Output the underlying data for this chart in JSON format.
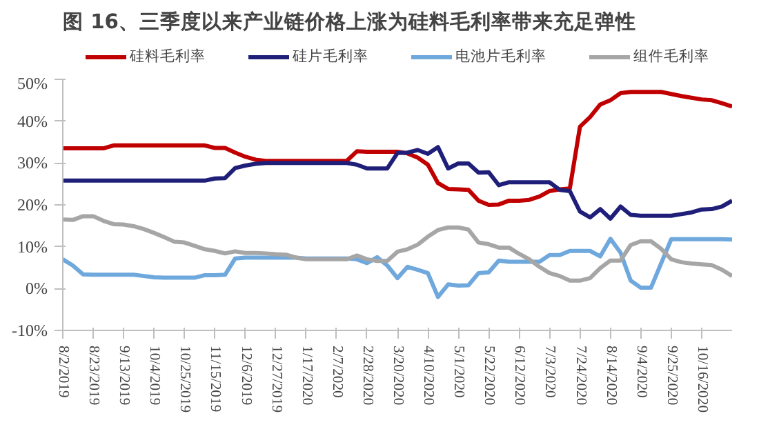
{
  "chart_data": {
    "type": "line",
    "title": "图 16、三季度以来产业链价格上涨为硅料毛利率带来充足弹性",
    "x": [
      "2019-08-02",
      "2019-08-09",
      "2019-08-16",
      "2019-08-23",
      "2019-08-30",
      "2019-09-06",
      "2019-09-13",
      "2019-09-20",
      "2019-09-27",
      "2019-10-04",
      "2019-10-11",
      "2019-10-18",
      "2019-10-25",
      "2019-11-01",
      "2019-11-08",
      "2019-11-15",
      "2019-11-22",
      "2019-11-29",
      "2019-12-06",
      "2019-12-13",
      "2019-12-20",
      "2019-12-27",
      "2020-01-03",
      "2020-01-10",
      "2020-01-17",
      "2020-01-24",
      "2020-01-31",
      "2020-02-07",
      "2020-02-14",
      "2020-02-21",
      "2020-02-28",
      "2020-03-06",
      "2020-03-13",
      "2020-03-20",
      "2020-03-27",
      "2020-04-03",
      "2020-04-10",
      "2020-04-17",
      "2020-04-24",
      "2020-05-01",
      "2020-05-08",
      "2020-05-15",
      "2020-05-22",
      "2020-05-29",
      "2020-06-05",
      "2020-06-12",
      "2020-06-19",
      "2020-06-26",
      "2020-07-03",
      "2020-07-10",
      "2020-07-17",
      "2020-07-24",
      "2020-07-31",
      "2020-08-07",
      "2020-08-14",
      "2020-08-21",
      "2020-08-28",
      "2020-09-04",
      "2020-09-11",
      "2020-09-18",
      "2020-09-25",
      "2020-10-02",
      "2020-10-09",
      "2020-10-16",
      "2020-10-23",
      "2020-10-30",
      "2020-11-06"
    ],
    "series": [
      {
        "name": "硅料毛利率",
        "color": "#c00000",
        "values": [
          33.5,
          33.5,
          33.5,
          33.5,
          33.5,
          34.2,
          34.2,
          34.2,
          34.2,
          34.2,
          34.2,
          34.2,
          34.2,
          34.2,
          34.2,
          33.6,
          33.6,
          32.5,
          31.5,
          30.8,
          30.5,
          30.5,
          30.5,
          30.5,
          30.5,
          30.5,
          30.5,
          30.5,
          30.5,
          32.8,
          32.7,
          32.7,
          32.7,
          32.7,
          32.3,
          31.3,
          29.6,
          25.2,
          23.8,
          23.7,
          23.6,
          21,
          20,
          20.1,
          21,
          21,
          21.2,
          22,
          23.3,
          23.7,
          23.9,
          38.7,
          41,
          44,
          45,
          46.7,
          47,
          47,
          47,
          47,
          46.5,
          46,
          45.6,
          45.2,
          45,
          44.3,
          43.5
        ]
      },
      {
        "name": "硅片毛利率",
        "color": "#1f1f7a",
        "values": [
          25.8,
          25.8,
          25.8,
          25.8,
          25.8,
          25.8,
          25.8,
          25.8,
          25.8,
          25.8,
          25.8,
          25.8,
          25.8,
          25.8,
          25.8,
          26.3,
          26.4,
          28.8,
          29.4,
          29.8,
          30,
          30,
          30,
          30,
          30,
          30,
          30,
          30,
          30,
          29.6,
          28.7,
          28.7,
          28.7,
          32.4,
          32.5,
          33.1,
          32.2,
          33.8,
          28.7,
          29.9,
          29.9,
          27.7,
          27.8,
          24.7,
          25.4,
          25.4,
          25.4,
          25.4,
          25.4,
          23.6,
          23.3,
          18.4,
          17,
          19,
          16.7,
          19.6,
          17.6,
          17.4,
          17.4,
          17.4,
          17.4,
          17.8,
          18.2,
          18.9,
          19,
          19.6,
          21
        ]
      },
      {
        "name": "电池片毛利率",
        "color": "#6fa8dc",
        "values": [
          7,
          5.5,
          3.4,
          3.3,
          3.3,
          3.3,
          3.3,
          3.3,
          3,
          2.7,
          2.6,
          2.6,
          2.6,
          2.6,
          3.2,
          3.2,
          3.3,
          7.2,
          7.4,
          7.4,
          7.4,
          7.4,
          7.4,
          7.4,
          7.2,
          7.2,
          7.2,
          7.2,
          7.2,
          7,
          6.1,
          7.5,
          5.5,
          2.5,
          5.2,
          4.5,
          3.7,
          -2,
          1,
          0.7,
          0.8,
          3.7,
          3.9,
          6.7,
          6.4,
          6.4,
          6.4,
          6.4,
          8,
          8,
          9,
          9,
          9,
          7.7,
          11.9,
          8.6,
          1.9,
          0.2,
          0.2,
          6,
          11.8,
          11.8,
          11.8,
          11.8,
          11.8,
          11.8,
          11.7
        ]
      },
      {
        "name": "组件毛利率",
        "color": "#a6a6a6",
        "values": [
          16.5,
          16.4,
          17.3,
          17.3,
          16.2,
          15.4,
          15.3,
          14.9,
          14.2,
          13.3,
          12.3,
          11.2,
          11,
          10.2,
          9.4,
          9,
          8.4,
          8.9,
          8.5,
          8.5,
          8.4,
          8.2,
          8.1,
          7.4,
          7,
          7,
          7,
          7,
          7,
          7.9,
          7,
          6.6,
          6.6,
          8.8,
          9.4,
          10.5,
          12.4,
          14,
          14.6,
          14.6,
          14.1,
          11,
          10.6,
          9.8,
          9.8,
          8.3,
          7,
          5.2,
          3.7,
          3,
          1.9,
          1.9,
          2.5,
          4.9,
          6.7,
          6.7,
          10.4,
          11.3,
          11.3,
          9.5,
          7,
          6.3,
          6,
          5.8,
          5.6,
          4.5,
          3
        ]
      }
    ],
    "xlim": [
      "2019-08-02",
      "2020-11-06"
    ],
    "xticks": [
      {
        "value": "2019-08-02",
        "label": "8/2/2019"
      },
      {
        "value": "2019-08-23",
        "label": "8/23/2019"
      },
      {
        "value": "2019-09-13",
        "label": "9/13/2019"
      },
      {
        "value": "2019-10-04",
        "label": "10/4/2019"
      },
      {
        "value": "2019-10-25",
        "label": "10/25/2019"
      },
      {
        "value": "2019-11-15",
        "label": "11/15/2019"
      },
      {
        "value": "2019-12-06",
        "label": "12/6/2019"
      },
      {
        "value": "2019-12-27",
        "label": "12/27/2019"
      },
      {
        "value": "2020-01-17",
        "label": "1/17/2020"
      },
      {
        "value": "2020-02-07",
        "label": "2/7/2020"
      },
      {
        "value": "2020-02-28",
        "label": "2/28/2020"
      },
      {
        "value": "2020-03-20",
        "label": "3/20/2020"
      },
      {
        "value": "2020-04-10",
        "label": "4/10/2020"
      },
      {
        "value": "2020-05-01",
        "label": "5/1/2020"
      },
      {
        "value": "2020-05-22",
        "label": "5/22/2020"
      },
      {
        "value": "2020-06-12",
        "label": "6/12/2020"
      },
      {
        "value": "2020-07-03",
        "label": "7/3/2020"
      },
      {
        "value": "2020-07-24",
        "label": "7/24/2020"
      },
      {
        "value": "2020-08-14",
        "label": "8/14/2020"
      },
      {
        "value": "2020-09-04",
        "label": "9/4/2020"
      },
      {
        "value": "2020-09-25",
        "label": "9/25/2020"
      },
      {
        "value": "2020-10-16",
        "label": "10/16/2020"
      }
    ],
    "ylim": [
      -10,
      50
    ],
    "yticks": [
      {
        "value": -10,
        "label": "-10%"
      },
      {
        "value": 0,
        "label": "0%"
      },
      {
        "value": 10,
        "label": "10%"
      },
      {
        "value": 20,
        "label": "20%"
      },
      {
        "value": 30,
        "label": "30%"
      },
      {
        "value": 40,
        "label": "40%"
      },
      {
        "value": 50,
        "label": "50%"
      }
    ],
    "grid": false,
    "legend": "top",
    "marker": "none",
    "line_style": "solid"
  }
}
